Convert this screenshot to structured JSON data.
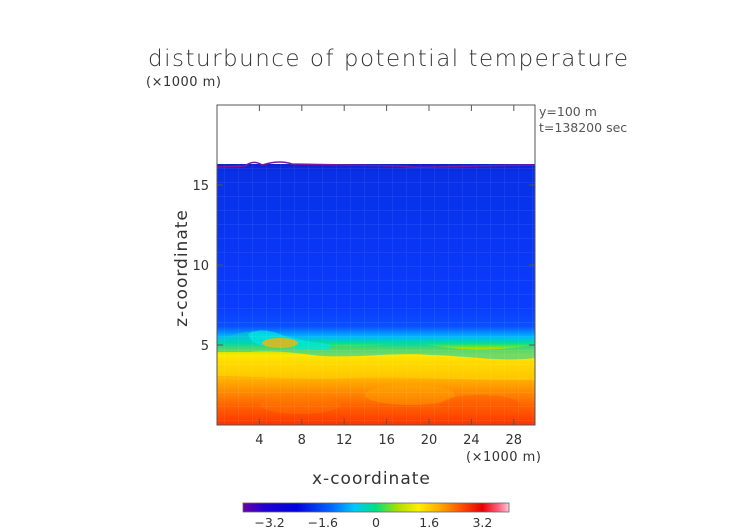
{
  "chart_data": {
    "type": "heatmap",
    "title": "disturbunce of potential temperature",
    "xlabel": "x-coordinate",
    "ylabel": "z-coordinate",
    "x_unit": "(×1000 m)",
    "z_unit": "(×1000 m)",
    "annotations": [
      "y=100 m",
      "t=138200 sec"
    ],
    "xlim": [
      0,
      30
    ],
    "ylim": [
      0,
      20
    ],
    "x_ticks": [
      4,
      8,
      12,
      16,
      20,
      24,
      28
    ],
    "y_ticks": [
      5,
      10,
      15
    ],
    "colorbar": {
      "range": [
        -4,
        4
      ],
      "ticks": [
        -3.2,
        -1.6,
        0,
        1.6,
        3.2
      ],
      "tick_labels": [
        "−3.2",
        "−1.6",
        "0",
        "1.6",
        "3.2"
      ],
      "colormap": "rainbow",
      "colors": [
        "#6b00a8",
        "#0000d8",
        "#0066ff",
        "#00c8ff",
        "#00e080",
        "#a8e000",
        "#ffee00",
        "#ffaa00",
        "#ff5000",
        "#e80000",
        "#ff6080",
        "#ffc8d8"
      ]
    },
    "field_description_values": {
      "top_of_data_z": 16.2,
      "upper_layer_value": -2.8,
      "transition_z": 5.5,
      "lower_layer_value": 2.4,
      "surface_value": 3.2
    }
  }
}
